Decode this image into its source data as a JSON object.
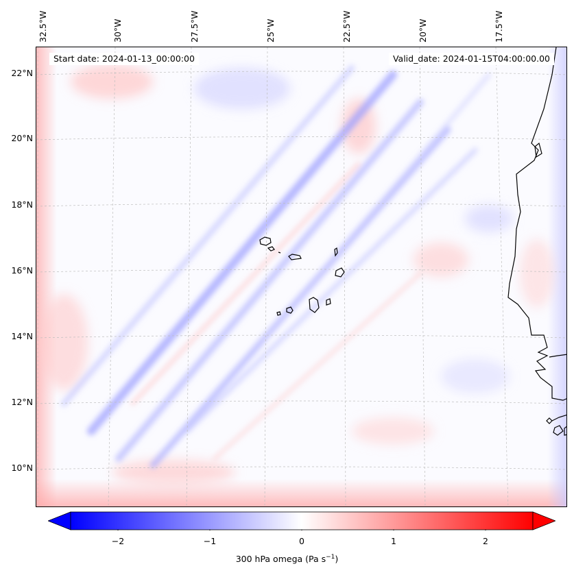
{
  "map": {
    "start_label": "Start date: 2024-01-13_00:00:00",
    "valid_label": "Valid_date: 2024-01-15T04:00:00.00",
    "lon_labels": [
      "32.5°W",
      "30°W",
      "27.5°W",
      "25°W",
      "22.5°W",
      "20°W",
      "17.5°W"
    ],
    "lat_labels": [
      "22°N",
      "20°N",
      "18°N",
      "16°N",
      "14°N",
      "12°N",
      "10°N"
    ],
    "colors": {
      "negative": "#0000ff",
      "zero": "#ffffff",
      "positive": "#ff0000",
      "coast": "#000000"
    }
  },
  "colorbar": {
    "ticks": [
      "−2",
      "−1",
      "0",
      "1",
      "2"
    ],
    "label": "300 hPa omega (Pa s",
    "label_exp": "−1",
    "label_close": ")"
  }
}
